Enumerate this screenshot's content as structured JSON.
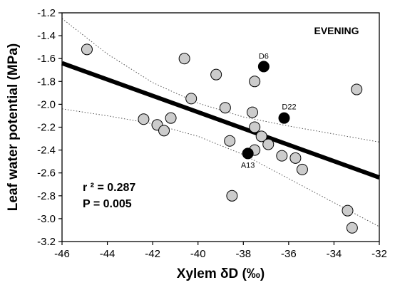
{
  "chart_data": {
    "type": "scatter",
    "xlabel": "Xylem δD (‰)",
    "ylabel": "Leaf water potential (MPa)",
    "xlim": [
      -46,
      -32
    ],
    "ylim": [
      -3.2,
      -1.2
    ],
    "xticks": [
      -46,
      -44,
      -42,
      -40,
      -38,
      -36,
      -34,
      -32
    ],
    "yticks": [
      -1.2,
      -1.4,
      -1.6,
      -1.8,
      -2.0,
      -2.2,
      -2.4,
      -2.6,
      -2.8,
      -3.0,
      -3.2
    ],
    "xtick_labels": [
      "-46",
      "-44",
      "-42",
      "-40",
      "-38",
      "-36",
      "-34",
      "-32"
    ],
    "ytick_labels": [
      "-1.2",
      "-1.4",
      "-1.6",
      "-1.8",
      "-2.0",
      "-2.2",
      "-2.4",
      "-2.6",
      "-2.8",
      "-3.0",
      "-3.2"
    ],
    "panel_label": "EVENING",
    "grid": false,
    "stats": {
      "r2_text": "r ² = 0.287",
      "p_text": "P = 0.005"
    },
    "regression": {
      "x": [
        -46,
        -32
      ],
      "y": [
        -1.64,
        -2.64
      ]
    },
    "confidence_upper": {
      "x": [
        -46,
        -44,
        -42,
        -40,
        -38,
        -36,
        -34,
        -32
      ],
      "y": [
        -1.25,
        -1.56,
        -1.81,
        -1.99,
        -2.11,
        -2.19,
        -2.26,
        -2.33
      ]
    },
    "confidence_lower": {
      "x": [
        -46,
        -44,
        -42,
        -40,
        -38,
        -36,
        -34,
        -32
      ],
      "y": [
        -2.04,
        -2.1,
        -2.17,
        -2.28,
        -2.44,
        -2.65,
        -2.86,
        -3.07
      ]
    },
    "series": [
      {
        "name": "",
        "color": "#cccccc",
        "points": [
          {
            "x": -44.9,
            "y": -1.52
          },
          {
            "x": -40.6,
            "y": -1.6
          },
          {
            "x": -39.2,
            "y": -1.74
          },
          {
            "x": -37.5,
            "y": -1.8
          },
          {
            "x": -33.0,
            "y": -1.87
          },
          {
            "x": -40.3,
            "y": -1.95
          },
          {
            "x": -38.8,
            "y": -2.03
          },
          {
            "x": -37.6,
            "y": -2.07
          },
          {
            "x": -42.4,
            "y": -2.13
          },
          {
            "x": -41.2,
            "y": -2.12
          },
          {
            "x": -41.8,
            "y": -2.18
          },
          {
            "x": -41.5,
            "y": -2.23
          },
          {
            "x": -37.5,
            "y": -2.2
          },
          {
            "x": -37.2,
            "y": -2.28
          },
          {
            "x": -38.6,
            "y": -2.32
          },
          {
            "x": -36.9,
            "y": -2.35
          },
          {
            "x": -37.5,
            "y": -2.4
          },
          {
            "x": -36.3,
            "y": -2.45
          },
          {
            "x": -35.7,
            "y": -2.47
          },
          {
            "x": -35.4,
            "y": -2.57
          },
          {
            "x": -38.5,
            "y": -2.8
          },
          {
            "x": -33.4,
            "y": -2.93
          },
          {
            "x": -33.2,
            "y": -3.08
          }
        ]
      },
      {
        "name": "",
        "color": "#000000",
        "points": [
          {
            "x": -37.1,
            "y": -1.67,
            "label": "D6"
          },
          {
            "x": -36.2,
            "y": -2.12,
            "label": "D22"
          },
          {
            "x": -37.8,
            "y": -2.43,
            "label": "A13"
          }
        ]
      }
    ]
  }
}
